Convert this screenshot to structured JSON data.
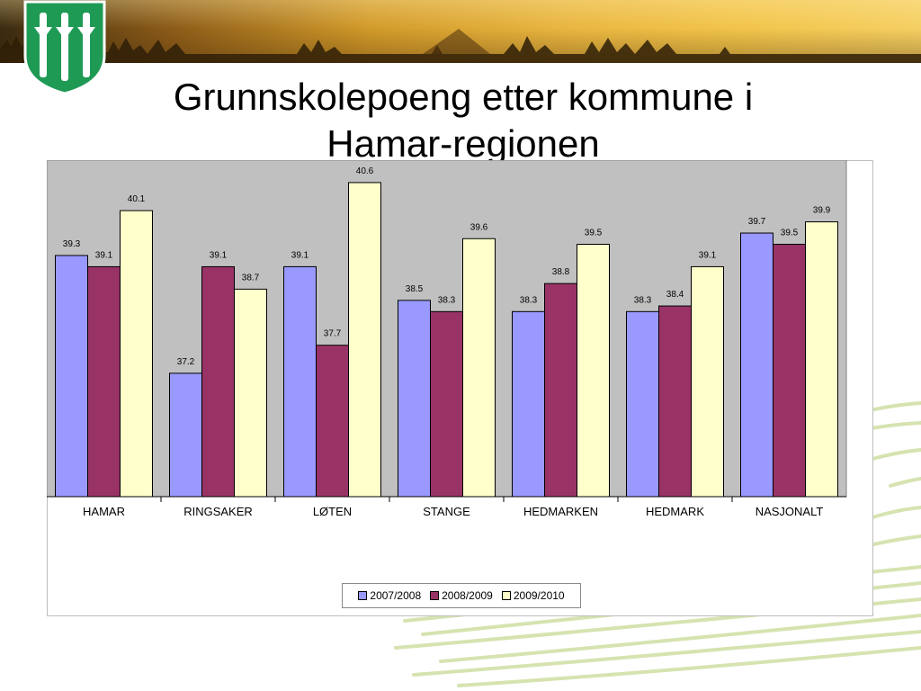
{
  "title": "Grunnskolepoeng etter kommune i Hamar-regionen",
  "colors": {
    "series_2007": "#9999ff",
    "series_2008": "#993366",
    "series_2009": "#ffffcc",
    "plot_background": "#c0c0c0",
    "emblem_green": "#1f9a55"
  },
  "chart_data": {
    "type": "bar",
    "categories": [
      "HAMAR",
      "RINGSAKER",
      "LØTEN",
      "STANGE",
      "HEDMARKEN",
      "HEDMARK",
      "NASJONALT"
    ],
    "series": [
      {
        "name": "2007/2008",
        "values": [
          39.3,
          37.2,
          39.1,
          38.5,
          38.3,
          38.3,
          39.7
        ]
      },
      {
        "name": "2008/2009",
        "values": [
          39.1,
          39.1,
          37.7,
          38.3,
          38.8,
          38.4,
          39.5
        ]
      },
      {
        "name": "2009/2010",
        "values": [
          40.1,
          38.7,
          40.6,
          39.6,
          39.5,
          39.1,
          39.9
        ]
      }
    ],
    "ylim": [
      35.0,
      41.0
    ],
    "data_labels": true,
    "grid": false,
    "legend_position": "bottom"
  }
}
